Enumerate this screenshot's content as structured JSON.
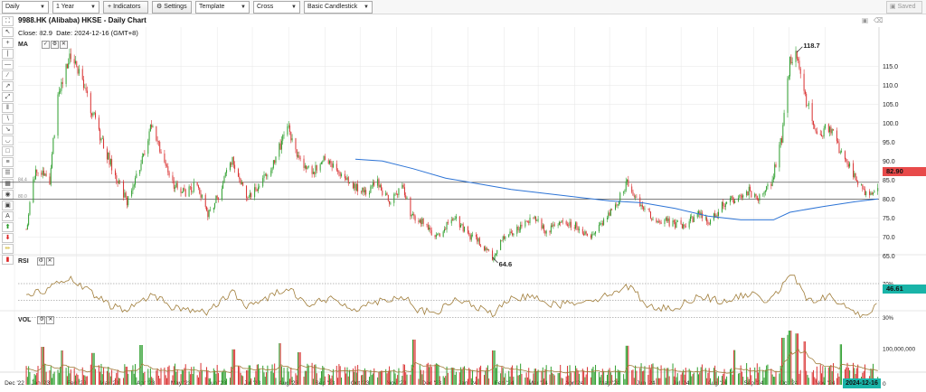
{
  "toolbar": {
    "period": "Daily",
    "range": "1 Year",
    "indicators": "Indicators",
    "settings": "Settings",
    "template": "Template",
    "cursor": "Cross",
    "chart_style": "Basic Candlestick",
    "save": "Saved"
  },
  "header": {
    "title": "9988.HK (Alibaba) HKSE - Daily Chart",
    "close_label": "Close:",
    "close_value": "82.9",
    "date_label": "Date:",
    "date_value": "2024-12-16 (GMT+8)",
    "ma_label": "MA"
  },
  "price_tags": {
    "last_price": "82.90",
    "rsi_value": "46.61",
    "last_date": "2024-12-16"
  },
  "annotations": {
    "high": "118.7",
    "low": "64.6"
  },
  "panels": {
    "rsi_label": "RSI",
    "vol_label": "VOL"
  },
  "colors": {
    "up": "#2a9d2a",
    "down": "#d93030",
    "ma": "#2d74d6",
    "rsi": "#a07d3a",
    "vol_ma": "#a07d3a",
    "grid": "#e6e6e6",
    "hline": "#333333"
  },
  "chart_data": [
    {
      "type": "candlestick",
      "title": "9988.HK (Alibaba) HKSE - Daily Chart",
      "x_ticks": [
        "Dec '22",
        "Jan '23",
        "Feb '23",
        "Mar '23",
        "Apr '23",
        "May '23",
        "Jun '23",
        "Jul '23",
        "Aug '23",
        "Sep '23",
        "Oct '23",
        "Nov '23",
        "Dec '23",
        "Jan '24",
        "Feb '24",
        "Mar '24",
        "Apr '24",
        "May '24",
        "Jun '24",
        "Jul '24",
        "Aug '24",
        "Sep '24",
        "Oct '24",
        "Nov '24"
      ],
      "y_ticks": [
        65,
        70,
        75,
        80,
        85,
        90,
        95,
        100,
        105,
        110,
        115
      ],
      "ylim": [
        61.5,
        121.5
      ],
      "close_path": [
        [
          "2022-12-20",
          72.0
        ],
        [
          "2022-12-28",
          88.5
        ],
        [
          "2023-01-09",
          85.0
        ],
        [
          "2023-01-16",
          108.0
        ],
        [
          "2023-01-27",
          118.0
        ],
        [
          "2023-02-03",
          113.0
        ],
        [
          "2023-02-13",
          104.0
        ],
        [
          "2023-02-24",
          94.0
        ],
        [
          "2023-03-08",
          85.0
        ],
        [
          "2023-03-16",
          79.0
        ],
        [
          "2023-03-27",
          88.0
        ],
        [
          "2023-04-06",
          100.0
        ],
        [
          "2023-04-14",
          92.0
        ],
        [
          "2023-04-24",
          84.0
        ],
        [
          "2023-05-04",
          81.5
        ],
        [
          "2023-05-15",
          84.0
        ],
        [
          "2023-05-24",
          76.0
        ],
        [
          "2023-06-02",
          81.0
        ],
        [
          "2023-06-14",
          91.0
        ],
        [
          "2023-06-26",
          80.0
        ],
        [
          "2023-07-06",
          83.0
        ],
        [
          "2023-07-20",
          90.0
        ],
        [
          "2023-07-31",
          99.0
        ],
        [
          "2023-08-11",
          90.0
        ],
        [
          "2023-08-22",
          87.0
        ],
        [
          "2023-08-31",
          91.0
        ],
        [
          "2023-09-08",
          89.0
        ],
        [
          "2023-09-20",
          85.0
        ],
        [
          "2023-10-04",
          82.0
        ],
        [
          "2023-10-16",
          84.0
        ],
        [
          "2023-10-26",
          79.0
        ],
        [
          "2023-11-06",
          84.0
        ],
        [
          "2023-11-13",
          76.0
        ],
        [
          "2023-11-24",
          74.0
        ],
        [
          "2023-12-05",
          70.0
        ],
        [
          "2023-12-14",
          73.0
        ],
        [
          "2023-12-22",
          74.5
        ],
        [
          "2024-01-03",
          70.0
        ],
        [
          "2024-01-10",
          69.0
        ],
        [
          "2024-01-22",
          64.6
        ],
        [
          "2024-02-01",
          70.0
        ],
        [
          "2024-02-15",
          73.0
        ],
        [
          "2024-02-27",
          75.0
        ],
        [
          "2024-03-08",
          71.0
        ],
        [
          "2024-03-20",
          74.0
        ],
        [
          "2024-04-02",
          73.0
        ],
        [
          "2024-04-16",
          70.0
        ],
        [
          "2024-04-25",
          74.0
        ],
        [
          "2024-05-07",
          79.0
        ],
        [
          "2024-05-16",
          84.5
        ],
        [
          "2024-05-27",
          79.0
        ],
        [
          "2024-06-07",
          75.0
        ],
        [
          "2024-06-19",
          74.0
        ],
        [
          "2024-07-03",
          73.0
        ],
        [
          "2024-07-16",
          76.0
        ],
        [
          "2024-07-26",
          74.0
        ],
        [
          "2024-08-07",
          79.0
        ],
        [
          "2024-08-16",
          80.0
        ],
        [
          "2024-08-28",
          82.0
        ],
        [
          "2024-09-06",
          80.0
        ],
        [
          "2024-09-16",
          84.0
        ],
        [
          "2024-09-25",
          96.0
        ],
        [
          "2024-10-02",
          116.0
        ],
        [
          "2024-10-08",
          118.7
        ],
        [
          "2024-10-15",
          107.0
        ],
        [
          "2024-10-25",
          97.0
        ],
        [
          "2024-11-05",
          99.0
        ],
        [
          "2024-11-15",
          92.0
        ],
        [
          "2024-11-26",
          86.0
        ],
        [
          "2024-12-05",
          81.0
        ],
        [
          "2024-12-16",
          82.9
        ]
      ],
      "ma_line": [
        [
          "2023-09-27",
          90.5
        ],
        [
          "2023-10-20",
          90.0
        ],
        [
          "2023-11-15",
          88.0
        ],
        [
          "2023-12-13",
          85.5
        ],
        [
          "2024-01-10",
          84.0
        ],
        [
          "2024-02-07",
          82.5
        ],
        [
          "2024-03-06",
          81.5
        ],
        [
          "2024-04-03",
          80.5
        ],
        [
          "2024-05-01",
          79.5
        ],
        [
          "2024-05-29",
          79.0
        ],
        [
          "2024-06-26",
          77.5
        ],
        [
          "2024-07-24",
          75.5
        ],
        [
          "2024-08-21",
          74.5
        ],
        [
          "2024-09-18",
          74.5
        ],
        [
          "2024-10-02",
          76.5
        ],
        [
          "2024-10-30",
          78.0
        ],
        [
          "2024-11-27",
          79.3
        ],
        [
          "2024-12-16",
          80.0
        ]
      ],
      "horizontal_lines": [
        84.4,
        80.0
      ],
      "hline_labels": [
        "84.4",
        "80.0"
      ],
      "high_label": {
        "date": "2024-10-08",
        "value": 118.7,
        "text": "118.7"
      },
      "low_label": {
        "date": "2024-01-22",
        "value": 64.6,
        "text": "64.6"
      },
      "last_close": 82.9
    },
    {
      "type": "line",
      "title": "RSI",
      "y_ticks": [
        30,
        70
      ],
      "y_tick_labels": [
        "30%",
        "70%"
      ],
      "ylim": [
        25,
        85
      ],
      "reference_lines": [
        30,
        50,
        70
      ],
      "series": [
        {
          "values": [
            [
              "2022-12-20",
              58
            ],
            [
              "2023-01-05",
              62
            ],
            [
              "2023-01-25",
              76
            ],
            [
              "2023-02-10",
              62
            ],
            [
              "2023-02-28",
              45
            ],
            [
              "2023-03-16",
              38
            ],
            [
              "2023-04-06",
              58
            ],
            [
              "2023-04-24",
              42
            ],
            [
              "2023-05-24",
              36
            ],
            [
              "2023-06-14",
              60
            ],
            [
              "2023-06-28",
              42
            ],
            [
              "2023-07-31",
              66
            ],
            [
              "2023-08-18",
              45
            ],
            [
              "2023-09-05",
              52
            ],
            [
              "2023-09-26",
              40
            ],
            [
              "2023-10-18",
              50
            ],
            [
              "2023-11-08",
              55
            ],
            [
              "2023-11-20",
              38
            ],
            [
              "2023-12-05",
              35
            ],
            [
              "2023-12-22",
              52
            ],
            [
              "2024-01-22",
              34
            ],
            [
              "2024-02-08",
              52
            ],
            [
              "2024-02-27",
              56
            ],
            [
              "2024-03-15",
              44
            ],
            [
              "2024-04-09",
              50
            ],
            [
              "2024-04-26",
              54
            ],
            [
              "2024-05-16",
              68
            ],
            [
              "2024-06-05",
              42
            ],
            [
              "2024-06-25",
              40
            ],
            [
              "2024-07-16",
              56
            ],
            [
              "2024-08-07",
              48
            ],
            [
              "2024-08-28",
              58
            ],
            [
              "2024-09-12",
              50
            ],
            [
              "2024-09-27",
              68
            ],
            [
              "2024-10-04",
              83
            ],
            [
              "2024-10-16",
              50
            ],
            [
              "2024-11-05",
              54
            ],
            [
              "2024-11-27",
              36
            ],
            [
              "2024-12-06",
              28
            ],
            [
              "2024-12-16",
              46.61
            ]
          ]
        }
      ],
      "last_value": 46.61
    },
    {
      "type": "bar",
      "title": "VOL",
      "y_ticks": [
        0,
        100000000
      ],
      "y_tick_labels": [
        "0",
        "100,000,000"
      ],
      "ylim": [
        0,
        155000000
      ],
      "typical_volume": 45000000,
      "spikes": [
        [
          "2023-01-03",
          105000000
        ],
        [
          "2023-01-20",
          95000000
        ],
        [
          "2023-02-15",
          88000000
        ],
        [
          "2023-03-28",
          110000000
        ],
        [
          "2023-06-15",
          98000000
        ],
        [
          "2023-07-24",
          115000000
        ],
        [
          "2023-08-10",
          90000000
        ],
        [
          "2023-11-16",
          125000000
        ],
        [
          "2024-01-23",
          95000000
        ],
        [
          "2024-05-16",
          108000000
        ],
        [
          "2024-08-16",
          96000000
        ],
        [
          "2024-09-26",
          130000000
        ],
        [
          "2024-09-30",
          138000000
        ],
        [
          "2024-10-02",
          150000000
        ],
        [
          "2024-10-08",
          142000000
        ],
        [
          "2024-10-14",
          120000000
        ],
        [
          "2024-11-15",
          112000000
        ]
      ]
    }
  ]
}
